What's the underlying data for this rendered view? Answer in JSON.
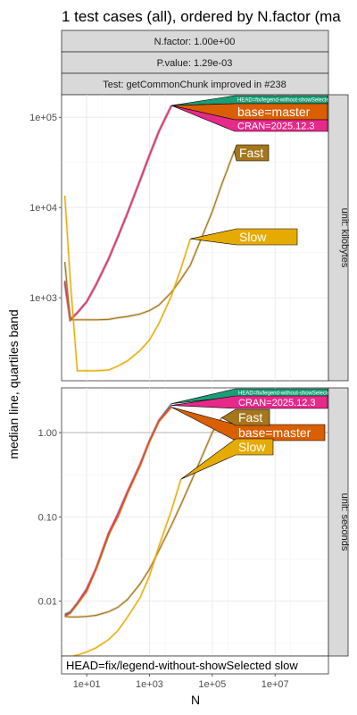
{
  "chart_data": {
    "type": "line",
    "title": "1 test cases (all), ordered by N.factor (ma",
    "strips": {
      "nfactor": "N.factor: 1.00e+00",
      "pvalue": "P.value: 1.29e-03",
      "test": "Test: getCommonChunk improved in #238"
    },
    "xlabel": "N",
    "ylabel": "median line, quartiles band",
    "x_scale": "log10",
    "x_ticks": [
      "1e+01",
      "1e+03",
      "1e+05",
      "1e+07"
    ],
    "legend": "HEAD=fix/legend-without-showSelected slow",
    "colors": {
      "head": "#1b9e77",
      "base": "#d95f02",
      "cran": "#e7298a",
      "fast": "#a6761d",
      "slow": "#e6ab02"
    },
    "panels": [
      {
        "unit": "unit: kilobytes",
        "y_scale": "log10",
        "y_ticks": [
          "1e+03",
          "1e+04",
          "1e+05"
        ],
        "series": [
          {
            "key": "head",
            "label": "HEAD=fix/legend-without-showSelected",
            "x": [
              2,
              3,
              5,
              10,
              20,
              50,
              100,
              200,
              500,
              1000,
              2000,
              5000
            ],
            "y": [
              1550,
              570,
              680,
              900,
              1400,
              2700,
              4800,
              8700,
              20000,
              38000,
              70000,
              135000
            ]
          },
          {
            "key": "base",
            "label": "base=master",
            "x": [
              2,
              3,
              5,
              10,
              20,
              50,
              100,
              200,
              500,
              1000,
              2000,
              5000
            ],
            "y": [
              1450,
              570,
              680,
              900,
              1400,
              2700,
              4800,
              8700,
              20000,
              38000,
              70000,
              135000
            ]
          },
          {
            "key": "cran",
            "label": "CRAN=2025.12.3",
            "x": [
              2,
              3,
              5,
              10,
              20,
              50,
              100,
              200,
              500,
              1000,
              2000,
              5000
            ],
            "y": [
              1500,
              570,
              680,
              900,
              1400,
              2700,
              4800,
              8700,
              20000,
              38000,
              70000,
              135000
            ]
          },
          {
            "key": "fast",
            "label": "Fast",
            "x": [
              2,
              3,
              5,
              10,
              20,
              50,
              100,
              200,
              500,
              1000,
              2000,
              5000,
              10000,
              20000,
              50000,
              100000,
              200000,
              500000
            ],
            "y": [
              2500,
              570,
              570,
              570,
              570,
              575,
              600,
              620,
              660,
              720,
              830,
              1150,
              1600,
              2300,
              5000,
              9000,
              18000,
              42000
            ]
          },
          {
            "key": "slow",
            "label": "Slow",
            "x": [
              2,
              3,
              5,
              10,
              20,
              50,
              100,
              200,
              500,
              1000,
              2000,
              5000,
              10000,
              20000
            ],
            "y": [
              13500,
              1600,
              155,
              155,
              155,
              158,
              175,
              200,
              260,
              340,
              520,
              1050,
              2100,
              4500
            ]
          }
        ]
      },
      {
        "unit": "unit: seconds",
        "y_scale": "log10",
        "y_ticks": [
          "0.01",
          "0.10",
          "1.00"
        ],
        "series": [
          {
            "key": "head",
            "label": "HEAD=fix/legend-without-showSelected",
            "x": [
              2,
              3,
              5,
              10,
              20,
              50,
              100,
              200,
              500,
              1000,
              2000,
              5000
            ],
            "y": [
              0.007,
              0.0075,
              0.0095,
              0.014,
              0.024,
              0.06,
              0.11,
              0.2,
              0.42,
              0.8,
              1.4,
              2.2
            ]
          },
          {
            "key": "cran",
            "label": "CRAN=2025.12.3",
            "x": [
              2,
              3,
              5,
              10,
              20,
              50,
              100,
              200,
              500,
              1000,
              2000,
              5000
            ],
            "y": [
              0.0068,
              0.0073,
              0.0095,
              0.014,
              0.025,
              0.065,
              0.11,
              0.2,
              0.42,
              0.8,
              1.4,
              2.1
            ]
          },
          {
            "key": "base",
            "label": "base=master",
            "x": [
              2,
              3,
              5,
              10,
              20,
              50,
              100,
              200,
              500,
              1000,
              2000,
              5000
            ],
            "y": [
              0.0066,
              0.0072,
              0.0092,
              0.013,
              0.024,
              0.062,
              0.1,
              0.19,
              0.4,
              0.78,
              1.35,
              2.0
            ]
          },
          {
            "key": "fast",
            "label": "Fast",
            "x": [
              2,
              3,
              5,
              10,
              20,
              50,
              100,
              200,
              500,
              1000,
              2000,
              5000,
              10000,
              20000,
              50000,
              100000,
              200000
            ],
            "y": [
              0.0066,
              0.0065,
              0.0065,
              0.0066,
              0.0068,
              0.0075,
              0.0085,
              0.0105,
              0.016,
              0.024,
              0.04,
              0.08,
              0.14,
              0.25,
              0.55,
              1.0,
              1.5
            ]
          },
          {
            "key": "slow",
            "label": "Slow",
            "x": [
              3,
              5,
              10,
              20,
              50,
              100,
              200,
              500,
              1000,
              2000,
              5000,
              10000
            ],
            "y": [
              0.0022,
              0.0023,
              0.0025,
              0.0028,
              0.0035,
              0.0045,
              0.0065,
              0.011,
              0.02,
              0.045,
              0.12,
              0.28
            ]
          }
        ]
      }
    ]
  }
}
